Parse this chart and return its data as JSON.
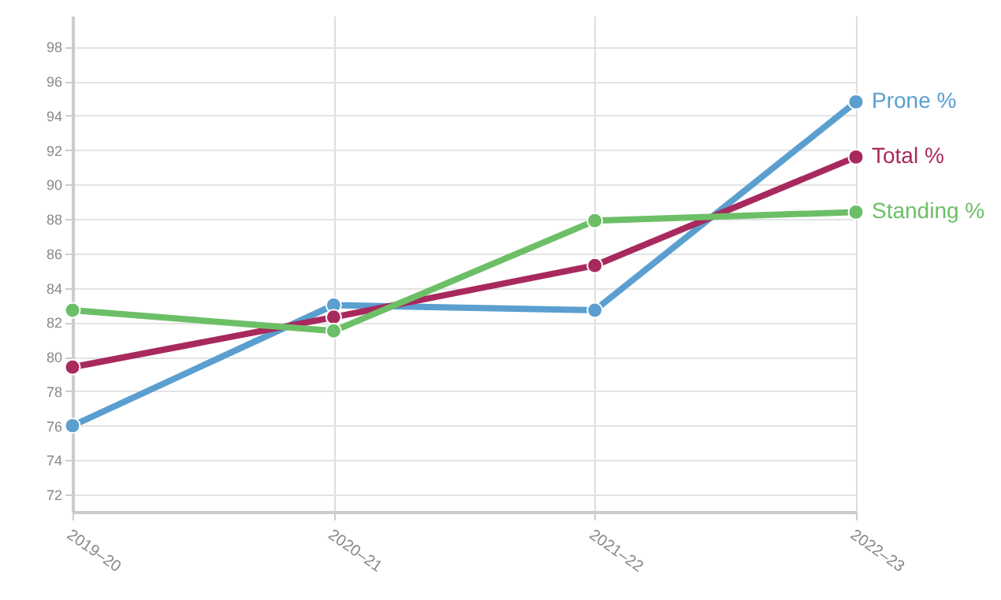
{
  "chart_data": {
    "type": "line",
    "categories": [
      "2019–20",
      "2020–21",
      "2021–22",
      "2022–23"
    ],
    "series": [
      {
        "name": "Prone %",
        "color": "#5a9fcf",
        "values": [
          76.0,
          83.0,
          82.7,
          94.8
        ]
      },
      {
        "name": "Total %",
        "color": "#a8295d",
        "values": [
          79.4,
          82.3,
          85.3,
          91.6
        ]
      },
      {
        "name": "Standing %",
        "color": "#6dbf67",
        "values": [
          82.7,
          81.5,
          87.9,
          88.4
        ]
      }
    ],
    "ylim": [
      71,
      99.8
    ],
    "yticks": [
      72,
      74,
      76,
      78,
      80,
      82,
      84,
      86,
      88,
      90,
      92,
      94,
      96,
      98
    ],
    "grid": true,
    "marker": "circle",
    "line_style": "solid"
  }
}
